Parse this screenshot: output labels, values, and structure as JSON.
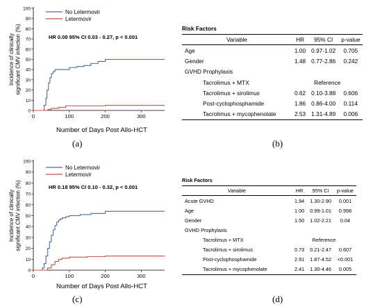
{
  "panels": {
    "a": "(a)",
    "b": "(b)",
    "c": "(c)",
    "d": "(d)"
  },
  "chart_data": [
    {
      "type": "line",
      "panel": "(a)",
      "ylabel": "Incidence of clinically significant CMV infection (%)",
      "xlabel": "Number of Days Post Allo-HCT",
      "annotation": "HR 0.08 95% CI 0.03 - 0.27, p < 0.001",
      "xlim": [
        0,
        365
      ],
      "ylim": [
        0,
        100
      ],
      "x_ticks": [
        0,
        100,
        200,
        300
      ],
      "y_ticks": [
        0,
        10,
        20,
        30,
        40,
        50,
        60,
        70,
        80,
        90,
        100
      ],
      "legend_position": "top-left",
      "series": [
        {
          "name": "No Letermovir",
          "color": "#4a6a9c",
          "x": [
            0,
            25,
            30,
            35,
            38,
            42,
            46,
            50,
            55,
            60,
            65,
            70,
            100,
            120,
            140,
            160,
            180,
            200,
            365
          ],
          "y": [
            0,
            0,
            5,
            12,
            20,
            27,
            32,
            36,
            38,
            40,
            40,
            40,
            42,
            43,
            44,
            46,
            48,
            50,
            50
          ]
        },
        {
          "name": "Letermovir",
          "color": "#c0504d",
          "x": [
            0,
            30,
            40,
            50,
            70,
            90,
            200,
            365
          ],
          "y": [
            0,
            0,
            1,
            2,
            3,
            4.5,
            5,
            5
          ]
        }
      ]
    },
    {
      "type": "line",
      "panel": "(c)",
      "ylabel": "Incidence of clinically significant CMV infection (%)",
      "xlabel": "Number of Days Post Allo-HCT",
      "annotation": "HR 0.18 95% CI 0.10 - 0.32, p < 0.001",
      "xlim": [
        0,
        365
      ],
      "ylim": [
        0,
        100
      ],
      "x_ticks": [
        0,
        100,
        200,
        300
      ],
      "y_ticks": [
        0,
        10,
        20,
        30,
        40,
        50,
        60,
        70,
        80,
        90,
        100
      ],
      "legend_position": "top-left",
      "series": [
        {
          "name": "No Letermovir",
          "color": "#4a6a9c",
          "x": [
            0,
            20,
            25,
            30,
            35,
            40,
            45,
            50,
            55,
            60,
            65,
            70,
            75,
            80,
            90,
            100,
            130,
            160,
            200,
            365
          ],
          "y": [
            0,
            0,
            2,
            6,
            13,
            20,
            26,
            32,
            37,
            41,
            44,
            46,
            47,
            48,
            49,
            50,
            51,
            52,
            54,
            54
          ]
        },
        {
          "name": "Letermovir",
          "color": "#c0504d",
          "x": [
            0,
            30,
            40,
            50,
            60,
            70,
            80,
            100,
            150,
            200,
            365
          ],
          "y": [
            0,
            0,
            2,
            5,
            8,
            10,
            11,
            12,
            12.5,
            13,
            13
          ]
        }
      ]
    }
  ],
  "table_b": {
    "title": "Risk Factors",
    "headers": [
      "Variable",
      "HR",
      "95% CI",
      "p-value"
    ],
    "rows": [
      {
        "variable": "Age",
        "indent": false,
        "hr": "1.00",
        "ci": "0.97-1.02",
        "p": "0.705"
      },
      {
        "variable": "Gender",
        "indent": false,
        "hr": "1.48",
        "ci": "0.77-2.86",
        "p": "0.242"
      },
      {
        "variable": "GVHD Prophylaxis",
        "indent": false,
        "hr": "",
        "ci": "",
        "p": ""
      },
      {
        "variable": "Tacrolimus + MTX",
        "indent": true,
        "reference": "Reference"
      },
      {
        "variable": "Tacrolimus + sirolimus",
        "indent": true,
        "hr": "0.62",
        "ci": "0.10-3.88",
        "p": "0.606"
      },
      {
        "variable": "Post-cyclophosphamide",
        "indent": true,
        "hr": "1.86",
        "ci": "0.86-4.00",
        "p": "0.114"
      },
      {
        "variable": "Tacrolimus + mycophenolate",
        "indent": true,
        "hr": "2.53",
        "ci": "1.31-4.89",
        "p": "0.006"
      }
    ]
  },
  "table_d": {
    "title": "Risk Factors",
    "headers": [
      "Variable",
      "HR",
      "95% CI",
      "p-value"
    ],
    "rows": [
      {
        "variable": "Acute GVHD",
        "indent": false,
        "hr": "1.94",
        "ci": "1.30-2.90",
        "p": "0.001"
      },
      {
        "variable": "Age",
        "indent": false,
        "hr": "1.00",
        "ci": "0.99-1.01",
        "p": "0.998"
      },
      {
        "variable": "Gender",
        "indent": false,
        "hr": "1.50",
        "ci": "1.02-2.21",
        "p": "0.04"
      },
      {
        "variable": "GVHD Prophylaxis",
        "indent": false,
        "hr": "",
        "ci": "",
        "p": ""
      },
      {
        "variable": "Tacrolimus + MTX",
        "indent": true,
        "reference": "Reference"
      },
      {
        "variable": "Tacrolimus + sirolimus",
        "indent": true,
        "hr": "0.73",
        "ci": "0.21-2.47",
        "p": "0.607"
      },
      {
        "variable": "Post-cyclophosphamide",
        "indent": true,
        "hr": "2.91",
        "ci": "1.87-4.52",
        "p": "<0.001"
      },
      {
        "variable": "Tacrolimus + mycophenolate",
        "indent": true,
        "hr": "2.41",
        "ci": "1.30-4.46",
        "p": "0.005"
      }
    ]
  }
}
